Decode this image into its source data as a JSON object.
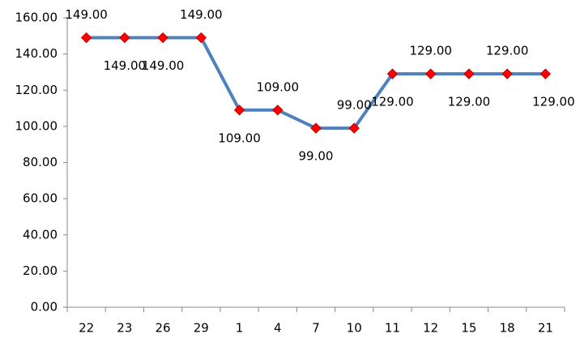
{
  "chart_data": {
    "type": "line",
    "categories": [
      "22",
      "23",
      "26",
      "29",
      "1",
      "4",
      "7",
      "10",
      "11",
      "12",
      "15",
      "18",
      "21"
    ],
    "values": [
      149,
      149,
      149,
      149,
      109,
      109,
      99,
      99,
      129,
      129,
      129,
      129,
      129
    ],
    "value_labels": [
      "149.00",
      "149.00",
      "149.00",
      "149.00",
      "109.00",
      "109.00",
      "99.00",
      "99.00",
      "129.00",
      "129.00",
      "129.00",
      "129.00",
      "129.00"
    ],
    "color": "#4f81bd",
    "marker_color": "#ff0000",
    "ylim": [
      0,
      160
    ],
    "yticks": [
      {
        "value": 0,
        "label": "0.00"
      },
      {
        "value": 20,
        "label": "20.00"
      },
      {
        "value": 40,
        "label": "40.00"
      },
      {
        "value": 60,
        "label": "60.00"
      },
      {
        "value": 80,
        "label": "80.00"
      },
      {
        "value": 100,
        "label": "100.00"
      },
      {
        "value": 120,
        "label": "120.00"
      },
      {
        "value": 140,
        "label": "140.00"
      },
      {
        "value": 160,
        "label": "160.00"
      }
    ],
    "grid": false
  }
}
